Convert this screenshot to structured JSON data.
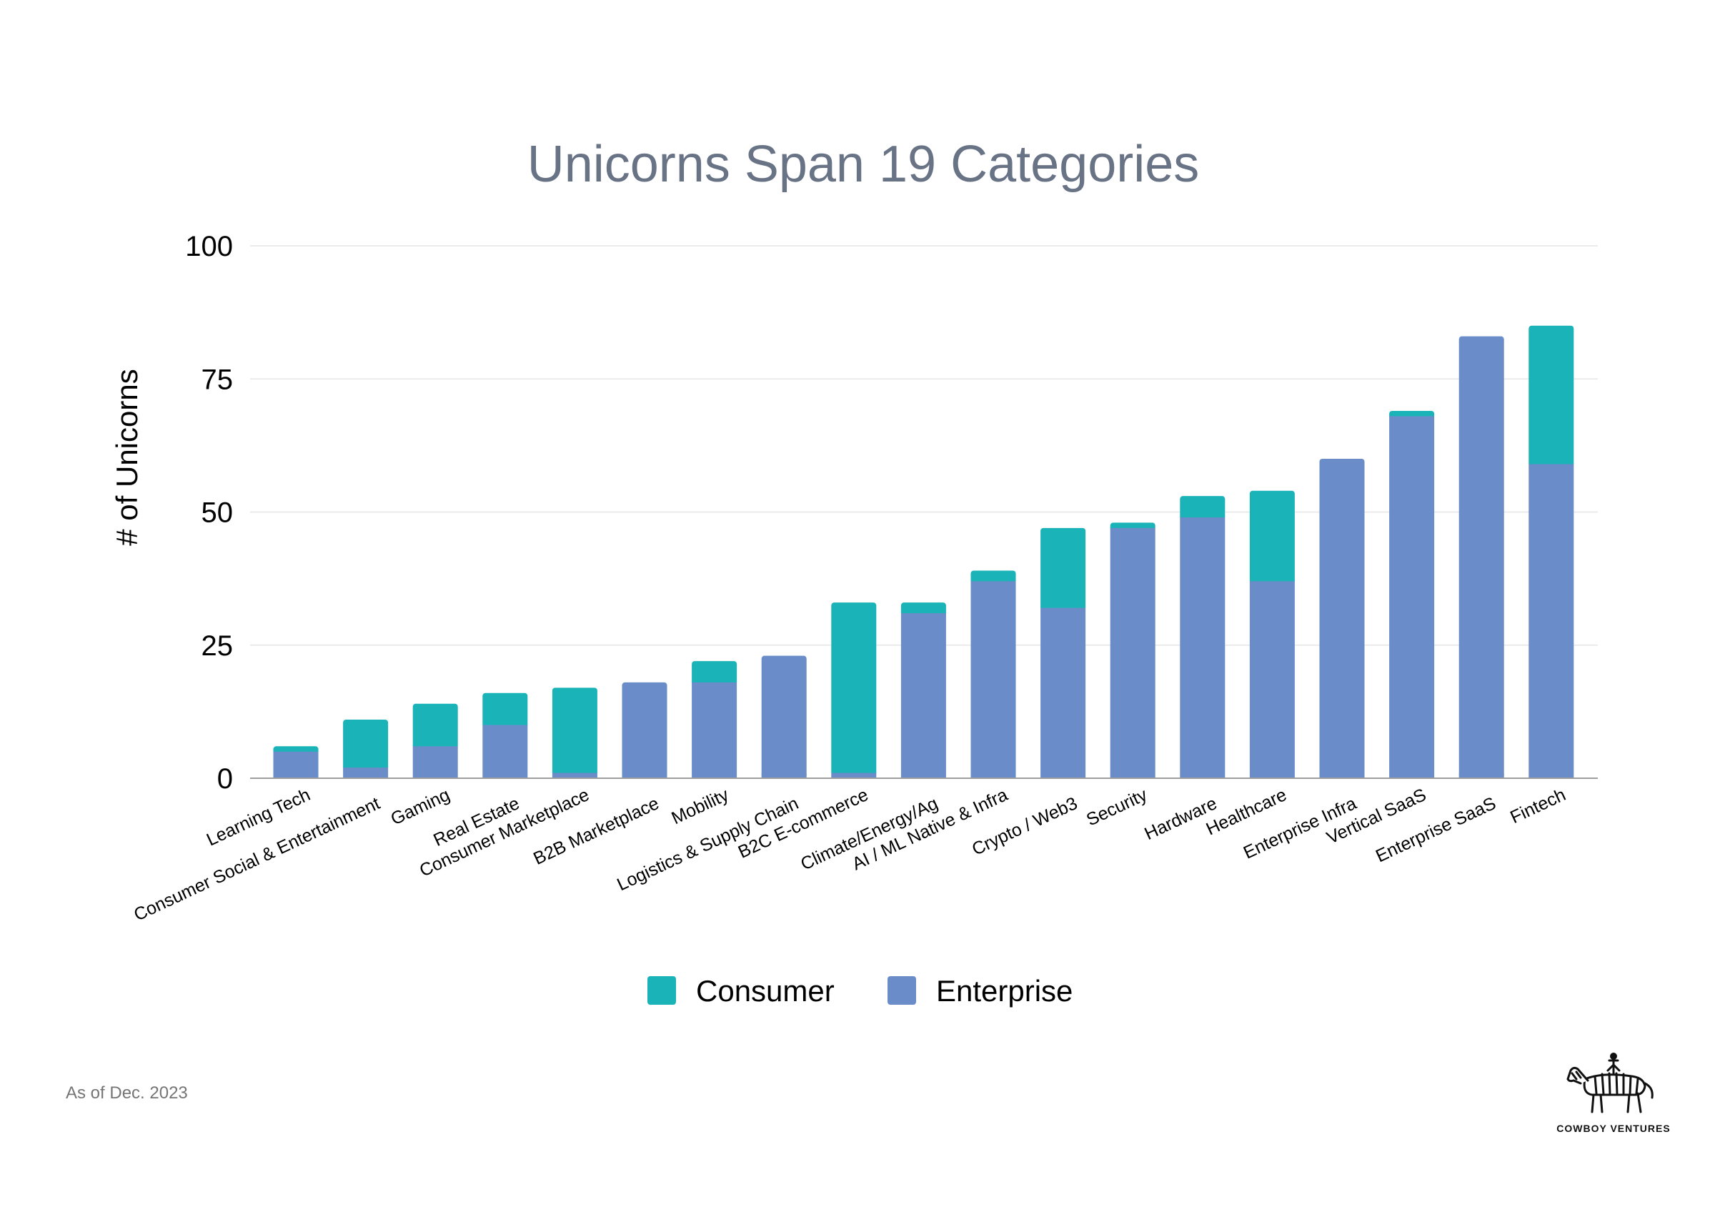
{
  "footnote": "As of Dec. 2023",
  "brand": {
    "name": "COWBOY VENTURES",
    "logo_icon": "zebra-with-rider-icon"
  },
  "colors": {
    "consumer": "#1ab3b8",
    "enterprise": "#6a8cc8",
    "grid": "#e6e6e6",
    "axis": "#9e9e9e",
    "title": "#697386"
  },
  "chart_data": {
    "type": "bar",
    "stacked": true,
    "title": "Unicorns Span 19 Categories",
    "xlabel": "",
    "ylabel": "# of Unicorns",
    "ylim": [
      0,
      100
    ],
    "yticks": [
      0,
      25,
      50,
      75,
      100
    ],
    "grid": true,
    "legend": "bottom",
    "categories": [
      "Learning Tech",
      "Consumer Social & Entertainment",
      "Gaming",
      "Real Estate",
      "Consumer Marketplace",
      "B2B Marketplace",
      "Mobility",
      "Logistics & Supply Chain",
      "B2C E-commerce",
      "Climate/Energy/Ag",
      "AI / ML Native & Infra",
      "Crypto / Web3",
      "Security",
      "Hardware",
      "Healthcare",
      "Enterprise Infra",
      "Vertical SaaS",
      "Enterprise SaaS",
      "Fintech"
    ],
    "series": [
      {
        "name": "Enterprise",
        "color": "#6a8cc8",
        "values": [
          5,
          2,
          6,
          10,
          1,
          18,
          18,
          23,
          1,
          31,
          37,
          32,
          47,
          49,
          37,
          60,
          68,
          83,
          59
        ]
      },
      {
        "name": "Consumer",
        "color": "#1ab3b8",
        "values": [
          1,
          9,
          8,
          6,
          16,
          0,
          4,
          0,
          32,
          2,
          2,
          15,
          1,
          4,
          17,
          0,
          1,
          0,
          26
        ]
      }
    ],
    "legend_order": [
      "Consumer",
      "Enterprise"
    ]
  }
}
